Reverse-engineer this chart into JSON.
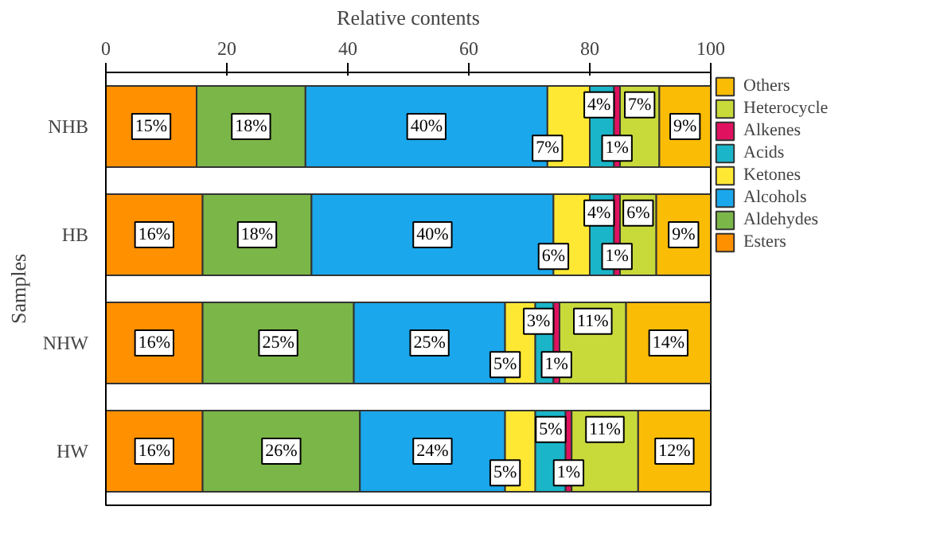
{
  "chart_data": {
    "type": "bar",
    "orientation": "horizontal",
    "stacked": true,
    "xlabel": "Relative contents",
    "ylabel": "Samples",
    "categories": [
      "NHB",
      "HB",
      "NHW",
      "HW"
    ],
    "xlim": [
      0,
      100
    ],
    "xticks": [
      0,
      20,
      40,
      60,
      80,
      100
    ],
    "legend": "right",
    "grid": false,
    "series": [
      {
        "name": "Esters",
        "color": "#ff9000",
        "values": [
          15,
          16,
          16,
          16
        ],
        "value_labels": [
          "15%",
          "16%",
          "16%",
          "16%"
        ]
      },
      {
        "name": "Aldehydes",
        "color": "#7ab648",
        "values": [
          18,
          18,
          25,
          26
        ],
        "value_labels": [
          "18%",
          "18%",
          "25%",
          "26%"
        ]
      },
      {
        "name": "Alcohols",
        "color": "#1aa7ec",
        "values": [
          40,
          40,
          25,
          24
        ],
        "value_labels": [
          "40%",
          "40%",
          "25%",
          "24%"
        ]
      },
      {
        "name": "Ketones",
        "color": "#ffe834",
        "values": [
          7,
          6,
          5,
          5
        ],
        "value_labels": [
          "7%",
          "6%",
          "5%",
          "5%"
        ]
      },
      {
        "name": "Acids",
        "color": "#1ab5c8",
        "values": [
          4,
          4,
          3,
          5
        ],
        "value_labels": [
          "4%",
          "4%",
          "3%",
          "5%"
        ]
      },
      {
        "name": "Alkenes",
        "color": "#e0115f",
        "values": [
          1,
          1,
          1,
          1
        ],
        "value_labels": [
          "1%",
          "1%",
          "1%",
          "1%"
        ]
      },
      {
        "name": "Heterocycle",
        "color": "#c8d93a",
        "values": [
          6.5,
          6,
          11,
          11
        ],
        "value_labels": [
          "7%",
          "6%",
          "11%",
          "11%"
        ]
      },
      {
        "name": "Others",
        "color": "#fbbc05",
        "values": [
          8.5,
          9,
          14,
          12
        ],
        "value_labels": [
          "9%",
          "9%",
          "14%",
          "12%"
        ]
      }
    ]
  }
}
